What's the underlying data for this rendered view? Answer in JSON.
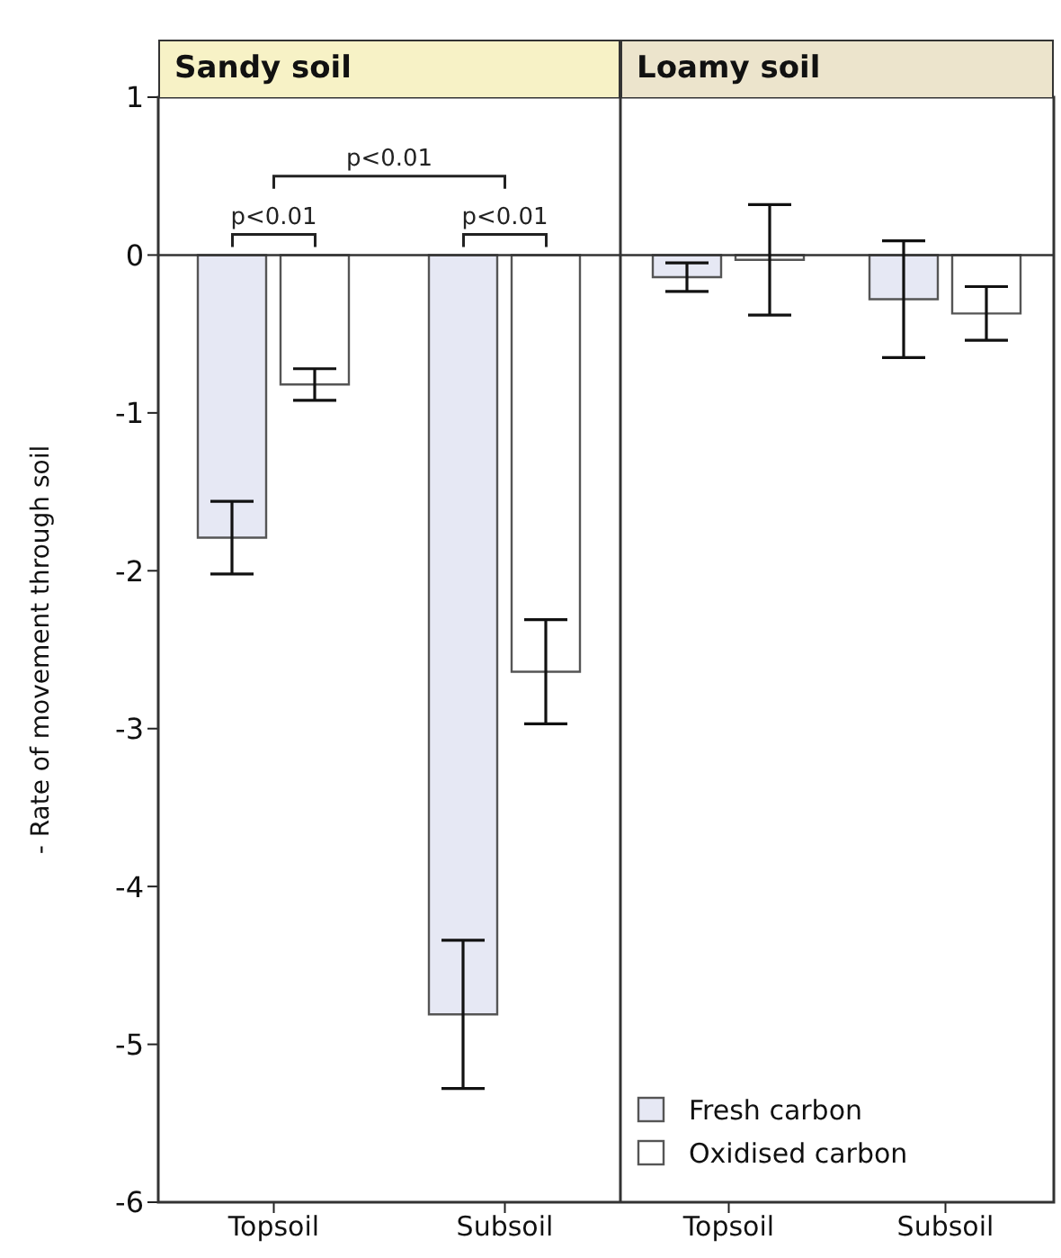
{
  "chart_data": [
    {
      "type": "bar",
      "title": "Sandy soil",
      "ylabel": "- Rate of movement through soil",
      "categories": [
        "Topsoil",
        "Subsoil"
      ],
      "series": [
        {
          "color": "#e6e8f4",
          "values": [
            -1.79,
            -4.81
          ],
          "errors": [
            0.23,
            0.47
          ]
        },
        {
          "color": "#ffffff",
          "values": [
            -0.82,
            -2.64
          ],
          "errors": [
            0.1,
            0.33
          ]
        }
      ],
      "ylim": [
        -6,
        1
      ],
      "yticks": [
        -6,
        -5,
        -4,
        -3,
        -2,
        -1,
        0,
        1
      ],
      "ref_lines": [
        {
          "axis": "y",
          "value": 0
        }
      ],
      "grid": false,
      "legend": false,
      "annotations": [
        "p<0.01",
        "p<0.01",
        "p<0.01"
      ]
    },
    {
      "type": "bar",
      "title": "Loamy soil",
      "categories": [
        "Topsoil",
        "Subsoil"
      ],
      "series": [
        {
          "name": "Fresh carbon",
          "color": "#e6e8f4",
          "values": [
            -0.14,
            -0.28
          ],
          "errors": [
            0.09,
            0.37
          ]
        },
        {
          "name": "Oxidised carbon",
          "color": "#ffffff",
          "values": [
            -0.03,
            -0.37
          ],
          "errors": [
            0.35,
            0.17
          ]
        }
      ],
      "ylim": [
        -6,
        1
      ],
      "yticks": [
        -6,
        -5,
        -4,
        -3,
        -2,
        -1,
        0,
        1
      ],
      "ref_lines": [
        {
          "axis": "y",
          "value": 0
        }
      ],
      "grid": false,
      "legend": "bottom left",
      "tick_labels": "x"
    }
  ]
}
